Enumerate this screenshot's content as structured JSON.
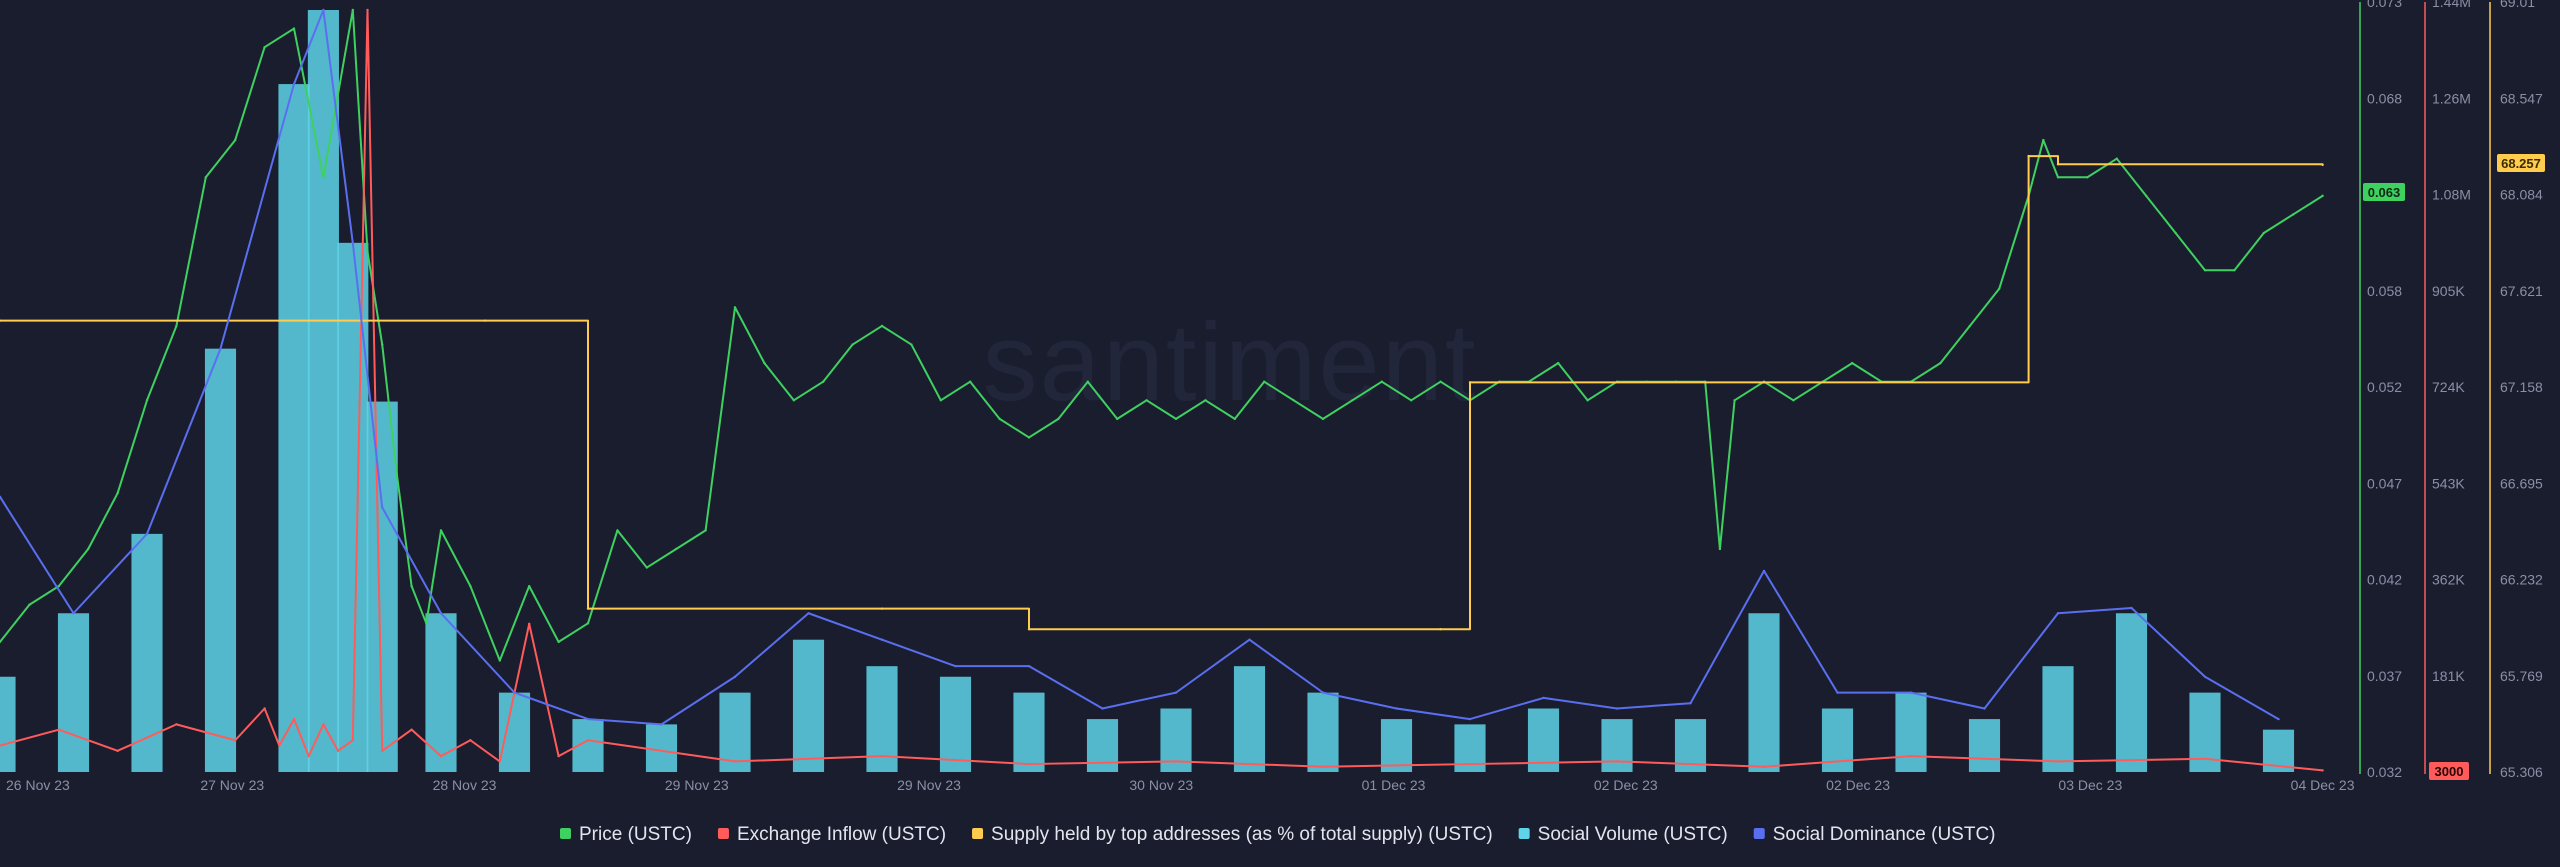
{
  "watermark": "santiment",
  "colors": {
    "background": "#1a1d2e",
    "price": "#3ed160",
    "inflow": "#ff5b5b",
    "supply": "#ffcc4d",
    "social_volume": "#5fd4e8",
    "social_dominance": "#5a6ff0"
  },
  "legend": [
    {
      "key": "price",
      "label": "Price (USTC)",
      "color": "#3ed160"
    },
    {
      "key": "inflow",
      "label": "Exchange Inflow (USTC)",
      "color": "#ff5b5b"
    },
    {
      "key": "supply",
      "label": "Supply held by top addresses (as % of total supply) (USTC)",
      "color": "#ffcc4d"
    },
    {
      "key": "social_volume",
      "label": "Social Volume (USTC)",
      "color": "#5fd4e8"
    },
    {
      "key": "social_dominance",
      "label": "Social Dominance (USTC)",
      "color": "#5a6ff0"
    }
  ],
  "badges": {
    "price": "0.063",
    "inflow": "3000",
    "supply": "68.257"
  },
  "chart_data": {
    "type": "line",
    "x_range": [
      "2023-11-26",
      "2023-12-04"
    ],
    "x_ticks": [
      "26 Nov 23",
      "27 Nov 23",
      "28 Nov 23",
      "29 Nov 23",
      "29 Nov 23",
      "30 Nov 23",
      "01 Dec 23",
      "02 Dec 23",
      "02 Dec 23",
      "03 Dec 23",
      "04 Dec 23"
    ],
    "axes": {
      "price": {
        "ticks": [
          "0.073",
          "0.068",
          "0.063",
          "0.058",
          "0.052",
          "0.047",
          "0.042",
          "0.037",
          "0.032"
        ],
        "range": [
          0.032,
          0.073
        ]
      },
      "inflow": {
        "ticks": [
          "1.44M",
          "1.26M",
          "1.08M",
          "905K",
          "724K",
          "543K",
          "362K",
          "181K"
        ],
        "range": [
          0,
          1440000
        ]
      },
      "supply": {
        "ticks": [
          "69.01",
          "68.547",
          "68.084",
          "67.621",
          "67.158",
          "66.695",
          "66.232",
          "65.769",
          "65.306"
        ],
        "range": [
          65.306,
          69.01
        ]
      }
    },
    "series": [
      {
        "name": "Price (USTC)",
        "type": "line",
        "axis": "price",
        "x": [
          0,
          0.1,
          0.2,
          0.3,
          0.4,
          0.5,
          0.6,
          0.7,
          0.8,
          0.9,
          1.0,
          1.1,
          1.2,
          1.25,
          1.3,
          1.35,
          1.4,
          1.45,
          1.5,
          1.6,
          1.7,
          1.8,
          1.9,
          2.0,
          2.1,
          2.2,
          2.3,
          2.4,
          2.5,
          2.6,
          2.7,
          2.8,
          2.9,
          3.0,
          3.1,
          3.2,
          3.3,
          3.4,
          3.5,
          3.6,
          3.7,
          3.8,
          3.9,
          4.0,
          4.1,
          4.2,
          4.3,
          4.4,
          4.5,
          4.6,
          4.7,
          4.8,
          4.9,
          5.0,
          5.1,
          5.2,
          5.3,
          5.4,
          5.5,
          5.6,
          5.7,
          5.8,
          5.85,
          5.9,
          6.0,
          6.1,
          6.2,
          6.3,
          6.4,
          6.5,
          6.6,
          6.7,
          6.8,
          6.9,
          6.95,
          7.0,
          7.1,
          7.2,
          7.3,
          7.4,
          7.5,
          7.6,
          7.7,
          7.8,
          7.9
        ],
        "values": [
          0.039,
          0.041,
          0.042,
          0.044,
          0.047,
          0.052,
          0.056,
          0.064,
          0.066,
          0.071,
          0.072,
          0.064,
          0.073,
          0.06,
          0.055,
          0.048,
          0.042,
          0.04,
          0.045,
          0.042,
          0.038,
          0.042,
          0.039,
          0.04,
          0.045,
          0.043,
          0.044,
          0.045,
          0.057,
          0.054,
          0.052,
          0.053,
          0.055,
          0.056,
          0.055,
          0.052,
          0.053,
          0.051,
          0.05,
          0.051,
          0.053,
          0.051,
          0.052,
          0.051,
          0.052,
          0.051,
          0.053,
          0.052,
          0.051,
          0.052,
          0.053,
          0.052,
          0.053,
          0.052,
          0.053,
          0.053,
          0.054,
          0.052,
          0.053,
          0.053,
          0.053,
          0.053,
          0.044,
          0.052,
          0.053,
          0.052,
          0.053,
          0.054,
          0.053,
          0.053,
          0.054,
          0.056,
          0.058,
          0.063,
          0.066,
          0.064,
          0.064,
          0.065,
          0.063,
          0.061,
          0.059,
          0.059,
          0.061,
          0.062,
          0.063
        ]
      },
      {
        "name": "Exchange Inflow (USTC)",
        "type": "line",
        "axis": "inflow",
        "x": [
          0,
          0.2,
          0.4,
          0.6,
          0.8,
          0.9,
          0.95,
          1.0,
          1.05,
          1.1,
          1.15,
          1.2,
          1.25,
          1.3,
          1.4,
          1.5,
          1.6,
          1.7,
          1.8,
          1.9,
          2.0,
          2.5,
          3.0,
          3.5,
          4.0,
          4.5,
          5.0,
          5.5,
          6.0,
          6.5,
          7.0,
          7.5,
          7.9
        ],
        "values": [
          50000,
          80000,
          40000,
          90000,
          60000,
          120000,
          50000,
          100000,
          30000,
          90000,
          40000,
          60000,
          1440000,
          40000,
          80000,
          30000,
          60000,
          20000,
          280000,
          30000,
          60000,
          20000,
          30000,
          15000,
          20000,
          10000,
          15000,
          20000,
          10000,
          30000,
          20000,
          25000,
          3000
        ]
      },
      {
        "name": "Supply held by top addresses (as % of total supply) (USTC)",
        "type": "step",
        "axis": "supply",
        "x": [
          0,
          1.65,
          2.0,
          3.0,
          3.5,
          4.9,
          5.0,
          6.0,
          6.9,
          7.0,
          7.9
        ],
        "values": [
          67.5,
          67.5,
          66.1,
          66.1,
          66.0,
          66.0,
          67.2,
          67.2,
          68.3,
          68.26,
          68.257
        ]
      },
      {
        "name": "Social Volume (USTC)",
        "type": "bar",
        "axis": "inflow",
        "x": [
          0,
          0.25,
          0.5,
          0.75,
          1.0,
          1.1,
          1.2,
          1.3,
          1.5,
          1.75,
          2.0,
          2.25,
          2.5,
          2.75,
          3.0,
          3.25,
          3.5,
          3.75,
          4.0,
          4.25,
          4.5,
          4.75,
          5.0,
          5.25,
          5.5,
          5.75,
          6.0,
          6.25,
          6.5,
          6.75,
          7.0,
          7.25,
          7.5,
          7.75
        ],
        "values": [
          180000,
          300000,
          450000,
          800000,
          1300000,
          1440000,
          1000000,
          700000,
          300000,
          150000,
          100000,
          90000,
          150000,
          250000,
          200000,
          180000,
          150000,
          100000,
          120000,
          200000,
          150000,
          100000,
          90000,
          120000,
          100000,
          100000,
          300000,
          120000,
          150000,
          100000,
          200000,
          300000,
          150000,
          80000
        ]
      },
      {
        "name": "Social Dominance (USTC)",
        "type": "line",
        "axis": "inflow",
        "x": [
          0,
          0.25,
          0.5,
          0.75,
          1.0,
          1.1,
          1.2,
          1.3,
          1.5,
          1.75,
          2.0,
          2.25,
          2.5,
          2.75,
          3.0,
          3.25,
          3.5,
          3.75,
          4.0,
          4.25,
          4.5,
          4.75,
          5.0,
          5.25,
          5.5,
          5.75,
          6.0,
          6.25,
          6.5,
          6.75,
          7.0,
          7.25,
          7.5,
          7.75
        ],
        "values": [
          520000,
          300000,
          450000,
          800000,
          1300000,
          1440000,
          1000000,
          500000,
          300000,
          150000,
          100000,
          90000,
          180000,
          300000,
          250000,
          200000,
          200000,
          120000,
          150000,
          250000,
          150000,
          120000,
          100000,
          140000,
          120000,
          130000,
          380000,
          150000,
          150000,
          120000,
          300000,
          310000,
          180000,
          100000
        ]
      }
    ],
    "grid": false,
    "legend_position": "bottom"
  }
}
